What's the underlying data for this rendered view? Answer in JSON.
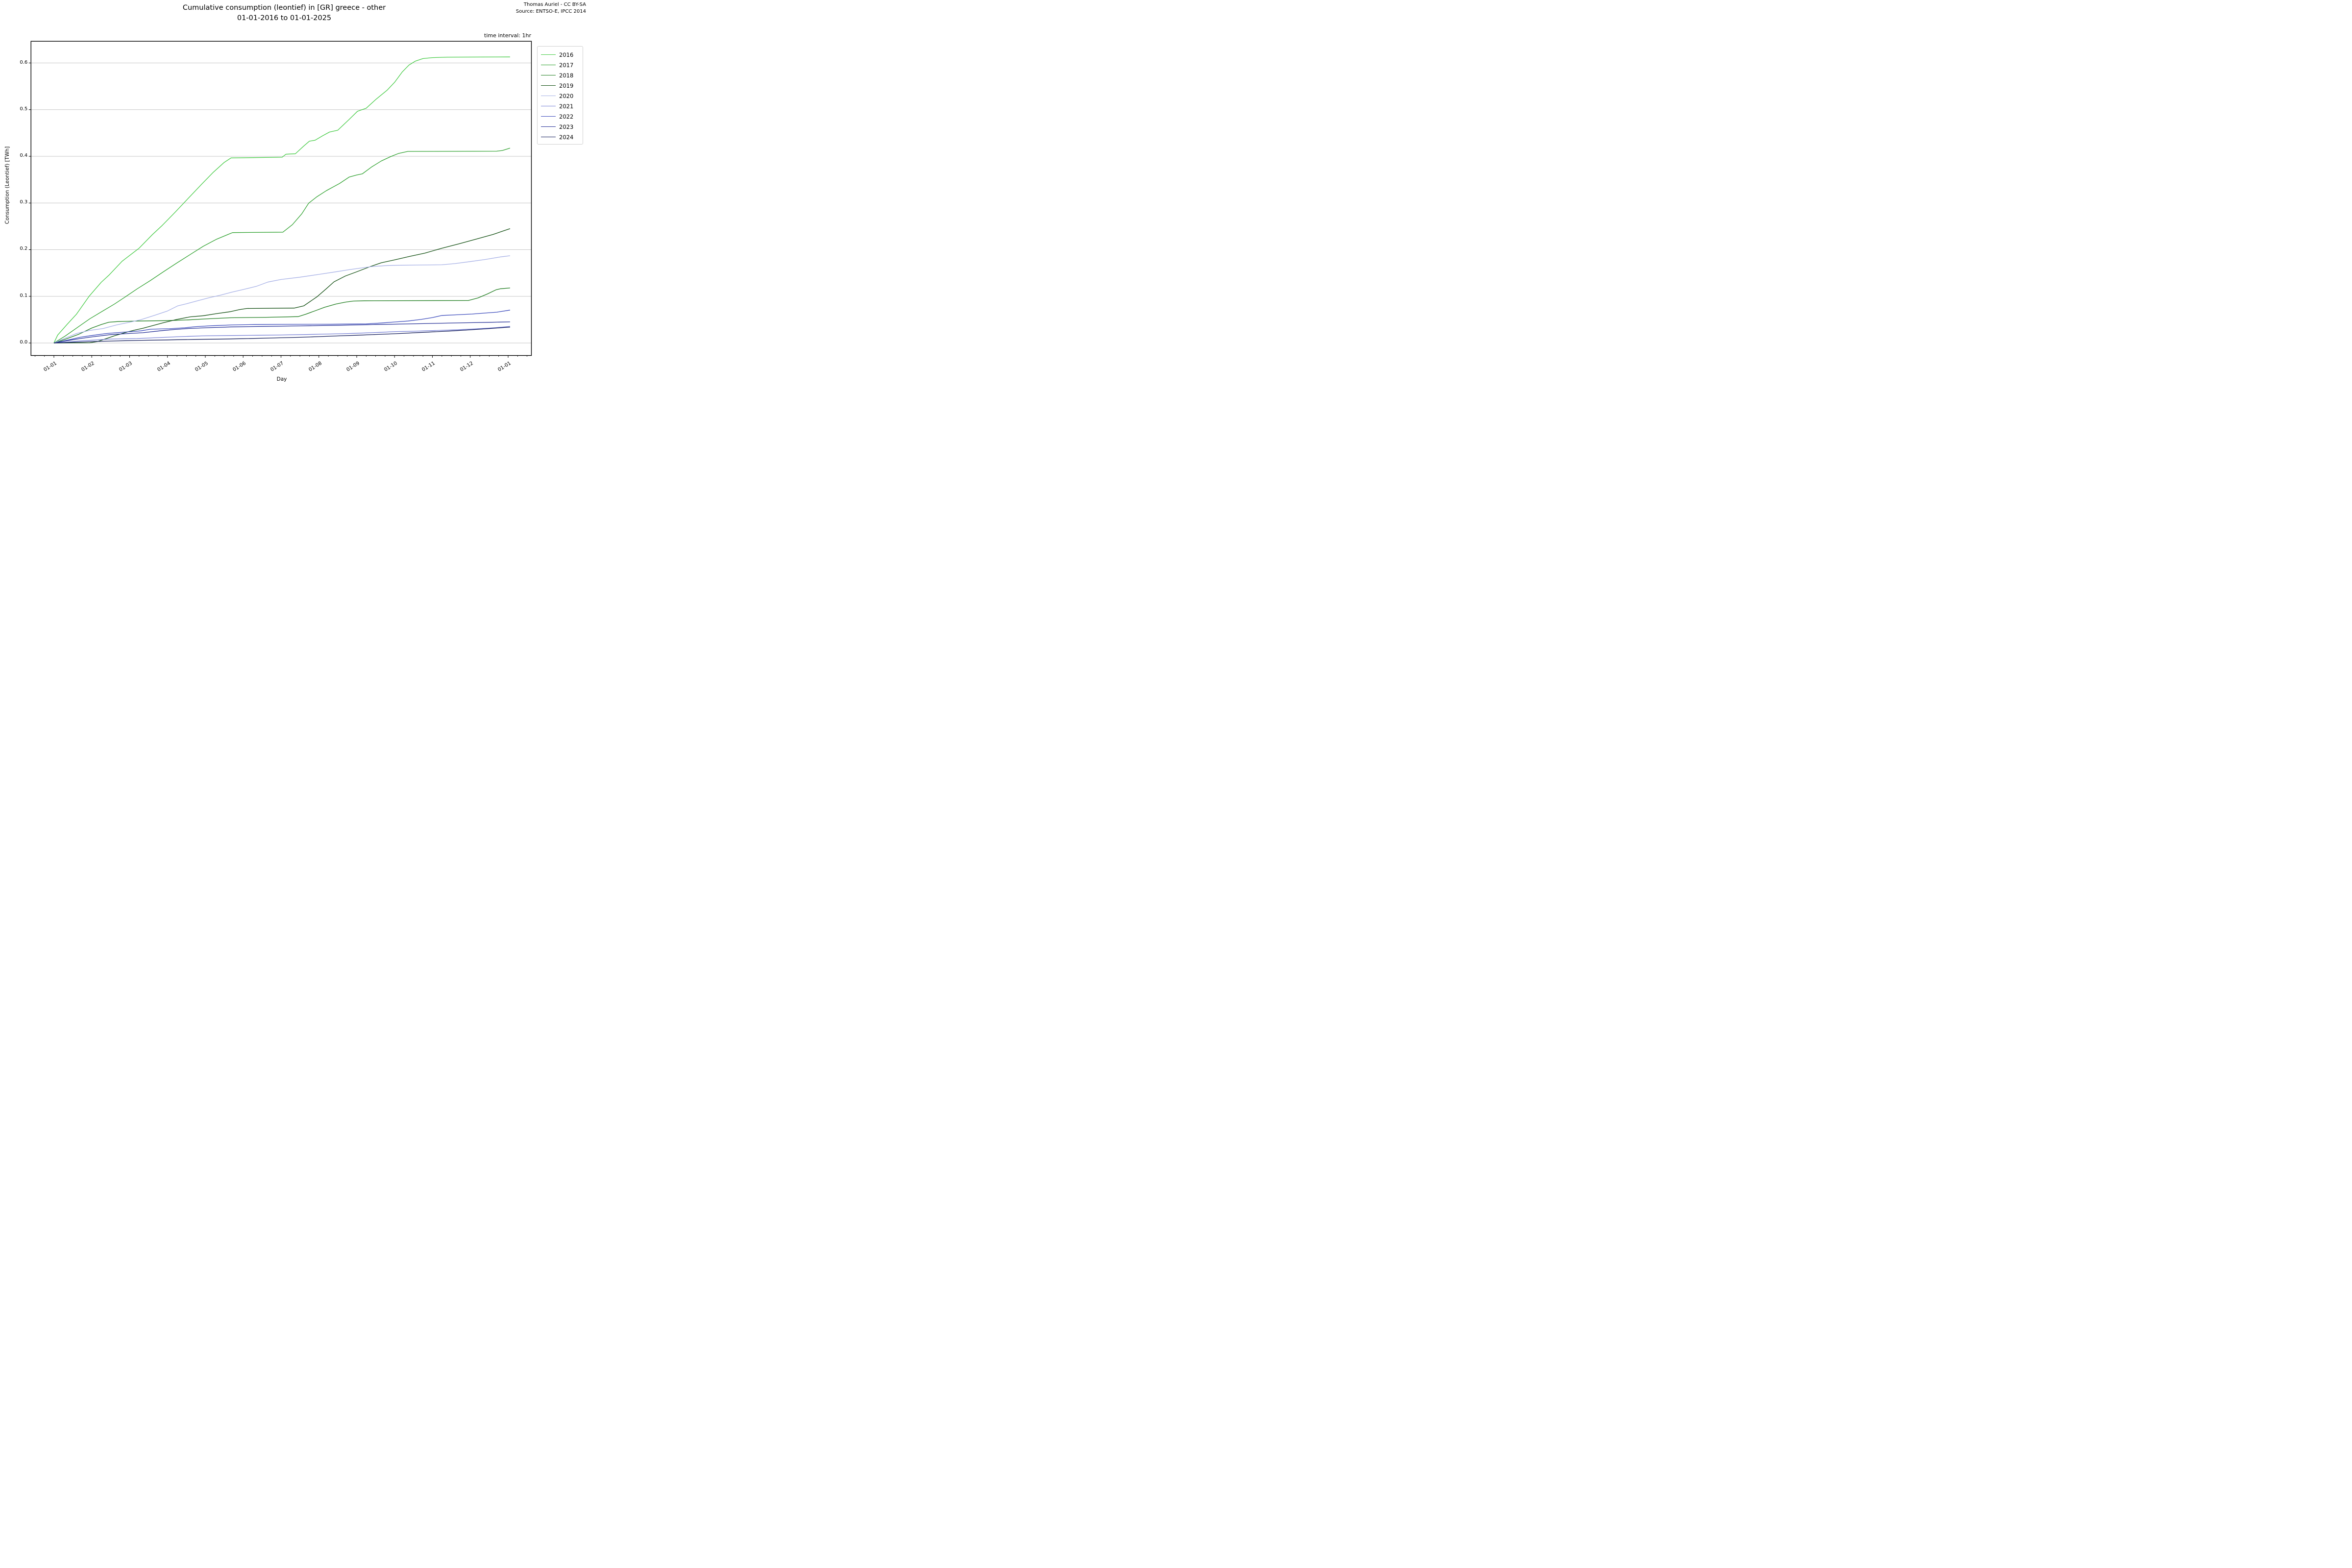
{
  "header": {
    "title_line1": "Cumulative consumption (leontief) in [GR] greece - other",
    "title_line2": "01-01-2016 to 01-01-2025",
    "credit_line1": "Thomas Auriel - CC BY-SA",
    "credit_line2": "Source: ENTSO-E, IPCC 2014",
    "time_interval_note": "time interval: 1hr"
  },
  "chart_data": {
    "type": "line",
    "title": "Cumulative consumption (leontief) in [GR] greece - other 01-01-2016 to 01-01-2025",
    "xlabel": "Day",
    "ylabel": "Consumption (Leontief) [TWh]",
    "x_unit": "months after Jan 1 (0 = 01-01, 1 = 01-02, ... 12 = next 01-01)",
    "xlim": [
      -0.605,
      12.615
    ],
    "ylim": [
      -0.0268,
      0.6465
    ],
    "grid": "horizontal gridlines only, light gray",
    "legend_position": "outside upper right",
    "xticks": [
      0,
      1,
      2,
      3,
      4,
      5,
      6,
      7,
      8,
      9,
      10,
      11,
      12
    ],
    "xticklabels": [
      "01-01",
      "01-02",
      "01-03",
      "01-04",
      "01-05",
      "01-06",
      "01-07",
      "01-08",
      "01-09",
      "01-10",
      "01-11",
      "01-12",
      "01-01"
    ],
    "yticks": [
      0.0,
      0.1,
      0.2,
      0.3,
      0.4,
      0.5,
      0.6
    ],
    "yticklabels": [
      "0.0",
      "0.1",
      "0.2",
      "0.3",
      "0.4",
      "0.5",
      "0.6"
    ],
    "minor_xtick_step": 0.25,
    "series": [
      {
        "name": "2016",
        "color": "#45cb45",
        "points": [
          [
            0,
            0
          ],
          [
            0.1,
            0.017
          ],
          [
            0.35,
            0.04
          ],
          [
            0.6,
            0.062
          ],
          [
            0.93,
            0.1
          ],
          [
            1.25,
            0.13
          ],
          [
            1.45,
            0.145
          ],
          [
            1.8,
            0.175
          ],
          [
            2.25,
            0.203
          ],
          [
            2.6,
            0.232
          ],
          [
            2.85,
            0.251
          ],
          [
            3.2,
            0.28
          ],
          [
            3.55,
            0.31
          ],
          [
            3.9,
            0.34
          ],
          [
            4.2,
            0.365
          ],
          [
            4.5,
            0.387
          ],
          [
            4.68,
            0.3965
          ],
          [
            6.03,
            0.398
          ],
          [
            6.13,
            0.4045
          ],
          [
            6.38,
            0.4055
          ],
          [
            6.6,
            0.422
          ],
          [
            6.75,
            0.4325
          ],
          [
            6.9,
            0.4345
          ],
          [
            7.1,
            0.444
          ],
          [
            7.28,
            0.452
          ],
          [
            7.5,
            0.456
          ],
          [
            7.8,
            0.479
          ],
          [
            8.02,
            0.4965
          ],
          [
            8.25,
            0.503
          ],
          [
            8.5,
            0.5215
          ],
          [
            8.8,
            0.5415
          ],
          [
            9.0,
            0.5585
          ],
          [
            9.2,
            0.5805
          ],
          [
            9.38,
            0.5955
          ],
          [
            9.55,
            0.604
          ],
          [
            9.75,
            0.6095
          ],
          [
            10.0,
            0.6115
          ],
          [
            10.4,
            0.6125
          ],
          [
            12.05,
            0.613
          ]
        ]
      },
      {
        "name": "2017",
        "color": "#2ea12e",
        "points": [
          [
            0,
            0
          ],
          [
            0.3,
            0.015
          ],
          [
            0.6,
            0.032
          ],
          [
            0.95,
            0.052
          ],
          [
            1.3,
            0.069
          ],
          [
            1.6,
            0.0835
          ],
          [
            1.91,
            0.1
          ],
          [
            2.2,
            0.116
          ],
          [
            2.55,
            0.134
          ],
          [
            2.9,
            0.153
          ],
          [
            3.25,
            0.1715
          ],
          [
            3.6,
            0.1895
          ],
          [
            3.95,
            0.2075
          ],
          [
            4.3,
            0.2225
          ],
          [
            4.6,
            0.2325
          ],
          [
            4.72,
            0.2365
          ],
          [
            6.05,
            0.2375
          ],
          [
            6.3,
            0.2535
          ],
          [
            6.55,
            0.277
          ],
          [
            6.73,
            0.2995
          ],
          [
            6.95,
            0.3135
          ],
          [
            7.2,
            0.3265
          ],
          [
            7.55,
            0.342
          ],
          [
            7.8,
            0.3555
          ],
          [
            8.0,
            0.36
          ],
          [
            8.15,
            0.3625
          ],
          [
            8.4,
            0.3775
          ],
          [
            8.65,
            0.39
          ],
          [
            8.9,
            0.3995
          ],
          [
            9.1,
            0.406
          ],
          [
            9.35,
            0.4105
          ],
          [
            11.7,
            0.411
          ],
          [
            11.85,
            0.4125
          ],
          [
            12.05,
            0.4175
          ]
        ]
      },
      {
        "name": "2018",
        "color": "#1d7c1d",
        "points": [
          [
            0,
            0
          ],
          [
            0.3,
            0.008
          ],
          [
            0.65,
            0.0185
          ],
          [
            1.0,
            0.032
          ],
          [
            1.25,
            0.0395
          ],
          [
            1.45,
            0.0445
          ],
          [
            1.7,
            0.046
          ],
          [
            2.2,
            0.047
          ],
          [
            3.0,
            0.048
          ],
          [
            3.55,
            0.0495
          ],
          [
            4.0,
            0.0515
          ],
          [
            4.65,
            0.054
          ],
          [
            5.6,
            0.055
          ],
          [
            6.45,
            0.0565
          ],
          [
            6.65,
            0.0615
          ],
          [
            6.9,
            0.069
          ],
          [
            7.15,
            0.0765
          ],
          [
            7.45,
            0.0835
          ],
          [
            7.7,
            0.0875
          ],
          [
            7.9,
            0.0898
          ],
          [
            8.2,
            0.0905
          ],
          [
            10.95,
            0.091
          ],
          [
            11.2,
            0.0965
          ],
          [
            11.45,
            0.105
          ],
          [
            11.68,
            0.114
          ],
          [
            11.8,
            0.1162
          ],
          [
            12.05,
            0.118
          ]
        ]
      },
      {
        "name": "2019",
        "color": "#0f4d0f",
        "points": [
          [
            0,
            0
          ],
          [
            0.95,
            0.0005
          ],
          [
            1.15,
            0.003
          ],
          [
            1.35,
            0.0085
          ],
          [
            1.6,
            0.0155
          ],
          [
            1.85,
            0.0215
          ],
          [
            2.1,
            0.027
          ],
          [
            2.35,
            0.0315
          ],
          [
            2.6,
            0.037
          ],
          [
            2.9,
            0.0435
          ],
          [
            3.25,
            0.0505
          ],
          [
            3.6,
            0.056
          ],
          [
            3.95,
            0.0585
          ],
          [
            4.3,
            0.063
          ],
          [
            4.65,
            0.067
          ],
          [
            4.9,
            0.0715
          ],
          [
            5.1,
            0.074
          ],
          [
            6.35,
            0.0748
          ],
          [
            6.6,
            0.0795
          ],
          [
            6.95,
            0.099
          ],
          [
            7.2,
            0.1165
          ],
          [
            7.4,
            0.131
          ],
          [
            7.7,
            0.1435
          ],
          [
            8.0,
            0.1525
          ],
          [
            8.35,
            0.1635
          ],
          [
            8.65,
            0.172
          ],
          [
            9.0,
            0.178
          ],
          [
            9.4,
            0.1855
          ],
          [
            9.8,
            0.1925
          ],
          [
            10.25,
            0.203
          ],
          [
            10.7,
            0.2125
          ],
          [
            11.15,
            0.2225
          ],
          [
            11.6,
            0.2325
          ],
          [
            12.05,
            0.245
          ]
        ]
      },
      {
        "name": "2020",
        "color": "#a6b0e6",
        "points": [
          [
            0,
            0
          ],
          [
            0.3,
            0.0105
          ],
          [
            0.6,
            0.0205
          ],
          [
            0.95,
            0.027
          ],
          [
            1.3,
            0.031
          ],
          [
            1.65,
            0.0385
          ],
          [
            2.0,
            0.0445
          ],
          [
            2.3,
            0.05
          ],
          [
            2.65,
            0.059
          ],
          [
            3.0,
            0.0685
          ],
          [
            3.27,
            0.0795
          ],
          [
            3.5,
            0.084
          ],
          [
            3.8,
            0.0905
          ],
          [
            4.1,
            0.097
          ],
          [
            4.4,
            0.1025
          ],
          [
            4.7,
            0.109
          ],
          [
            5.0,
            0.1145
          ],
          [
            5.35,
            0.1215
          ],
          [
            5.65,
            0.1305
          ],
          [
            6.0,
            0.136
          ],
          [
            6.5,
            0.141
          ],
          [
            7.0,
            0.147
          ],
          [
            7.45,
            0.1525
          ],
          [
            7.8,
            0.157
          ],
          [
            8.1,
            0.1605
          ],
          [
            8.4,
            0.1638
          ],
          [
            8.85,
            0.1662
          ],
          [
            9.6,
            0.167
          ],
          [
            10.25,
            0.1676
          ],
          [
            10.6,
            0.1702
          ],
          [
            11.0,
            0.1745
          ],
          [
            11.4,
            0.179
          ],
          [
            11.8,
            0.1845
          ],
          [
            12.05,
            0.187
          ]
        ]
      },
      {
        "name": "2021",
        "color": "#7780d6",
        "points": [
          [
            0,
            0
          ],
          [
            0.3,
            0.002
          ],
          [
            0.7,
            0.0045
          ],
          [
            1.0,
            0.006
          ],
          [
            1.5,
            0.0085
          ],
          [
            2.2,
            0.0095
          ],
          [
            2.6,
            0.011
          ],
          [
            3.3,
            0.0135
          ],
          [
            3.9,
            0.0152
          ],
          [
            4.7,
            0.016
          ],
          [
            5.4,
            0.0166
          ],
          [
            6.0,
            0.0172
          ],
          [
            6.6,
            0.018
          ],
          [
            7.1,
            0.019
          ],
          [
            7.6,
            0.0198
          ],
          [
            8.1,
            0.0212
          ],
          [
            8.6,
            0.0228
          ],
          [
            9.05,
            0.0245
          ],
          [
            9.5,
            0.0252
          ],
          [
            10.0,
            0.0265
          ],
          [
            10.55,
            0.028
          ],
          [
            10.95,
            0.0295
          ],
          [
            11.35,
            0.0312
          ],
          [
            11.7,
            0.033
          ],
          [
            12.05,
            0.0355
          ]
        ]
      },
      {
        "name": "2022",
        "color": "#3a49bb",
        "points": [
          [
            0,
            0
          ],
          [
            0.35,
            0.006
          ],
          [
            0.7,
            0.0125
          ],
          [
            1.0,
            0.016
          ],
          [
            1.4,
            0.0205
          ],
          [
            1.8,
            0.023
          ],
          [
            2.3,
            0.026
          ],
          [
            2.55,
            0.0295
          ],
          [
            3.05,
            0.0305
          ],
          [
            3.45,
            0.0325
          ],
          [
            3.75,
            0.035
          ],
          [
            4.2,
            0.037
          ],
          [
            4.7,
            0.0387
          ],
          [
            5.3,
            0.0396
          ],
          [
            6.2,
            0.04
          ],
          [
            7.3,
            0.0403
          ],
          [
            8.25,
            0.041
          ],
          [
            8.65,
            0.0428
          ],
          [
            9.0,
            0.045
          ],
          [
            9.35,
            0.047
          ],
          [
            9.7,
            0.0505
          ],
          [
            10.0,
            0.0545
          ],
          [
            10.25,
            0.059
          ],
          [
            10.65,
            0.0605
          ],
          [
            11.05,
            0.062
          ],
          [
            11.45,
            0.0645
          ],
          [
            11.7,
            0.066
          ],
          [
            12.05,
            0.0705
          ]
        ]
      },
      {
        "name": "2023",
        "color": "#232e96",
        "points": [
          [
            0,
            0
          ],
          [
            0.35,
            0.005
          ],
          [
            0.7,
            0.0095
          ],
          [
            1.0,
            0.013
          ],
          [
            1.5,
            0.018
          ],
          [
            2.0,
            0.0205
          ],
          [
            2.35,
            0.022
          ],
          [
            2.8,
            0.026
          ],
          [
            3.2,
            0.029
          ],
          [
            3.55,
            0.031
          ],
          [
            4.0,
            0.0325
          ],
          [
            4.7,
            0.0344
          ],
          [
            5.5,
            0.0355
          ],
          [
            6.5,
            0.0366
          ],
          [
            7.5,
            0.038
          ],
          [
            8.5,
            0.0396
          ],
          [
            9.3,
            0.0408
          ],
          [
            10.25,
            0.0424
          ],
          [
            11.0,
            0.0436
          ],
          [
            11.5,
            0.0443
          ],
          [
            12.05,
            0.0452
          ]
        ]
      },
      {
        "name": "2024",
        "color": "#111a59",
        "points": [
          [
            0,
            0
          ],
          [
            0.5,
            0.0015
          ],
          [
            1.0,
            0.003
          ],
          [
            1.7,
            0.0046
          ],
          [
            2.3,
            0.0056
          ],
          [
            3.0,
            0.0066
          ],
          [
            3.7,
            0.0076
          ],
          [
            4.3,
            0.0082
          ],
          [
            5.0,
            0.0092
          ],
          [
            5.7,
            0.0106
          ],
          [
            6.5,
            0.0122
          ],
          [
            7.0,
            0.0136
          ],
          [
            7.5,
            0.0152
          ],
          [
            8.0,
            0.0166
          ],
          [
            8.5,
            0.0182
          ],
          [
            9.0,
            0.0198
          ],
          [
            9.5,
            0.0218
          ],
          [
            10.0,
            0.0238
          ],
          [
            10.55,
            0.026
          ],
          [
            11.0,
            0.0282
          ],
          [
            11.5,
            0.0308
          ],
          [
            11.9,
            0.0332
          ],
          [
            12.05,
            0.034
          ]
        ]
      }
    ]
  },
  "colors": {
    "grid": "#c6c6c6",
    "spine": "#000000",
    "background": "#ffffff"
  }
}
